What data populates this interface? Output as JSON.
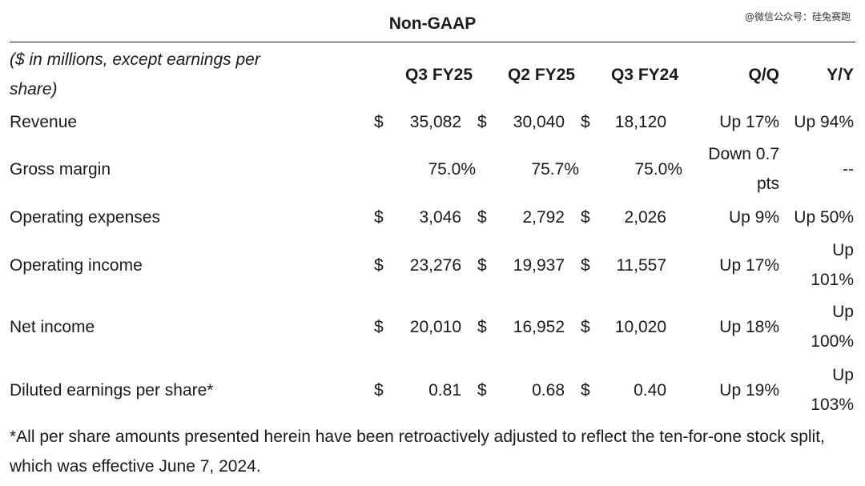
{
  "watermark": "@微信公众号：硅兔赛跑",
  "title": "Non-GAAP",
  "header": {
    "desc": "($ in millions, except earnings per share)",
    "q3fy25": "Q3 FY25",
    "q2fy25": "Q2 FY25",
    "q3fy24": "Q3 FY24",
    "qq": "Q/Q",
    "yy": "Y/Y"
  },
  "rows": [
    {
      "label": "Revenue",
      "d1": "$",
      "v1": "35,082",
      "d2": "$",
      "v2": "30,040",
      "d3": "$",
      "v3": "18,120",
      "qq": "Up 17%",
      "yy": "Up 94%"
    },
    {
      "label": "Gross margin",
      "d1": "",
      "v1": "75.0%",
      "d2": "",
      "v2": "75.7%",
      "d3": "",
      "v3": "75.0%",
      "qq": "Down 0.7 pts",
      "yy": "--"
    },
    {
      "label": "Operating expenses",
      "d1": "$",
      "v1": "3,046",
      "d2": "$",
      "v2": "2,792",
      "d3": "$",
      "v3": "2,026",
      "qq": "Up 9%",
      "yy": "Up 50%"
    },
    {
      "label": "Operating income",
      "d1": "$",
      "v1": "23,276",
      "d2": "$",
      "v2": "19,937",
      "d3": "$",
      "v3": "11,557",
      "qq": "Up 17%",
      "yy": "Up 101%"
    },
    {
      "label": "Net income",
      "d1": "$",
      "v1": "20,010",
      "d2": "$",
      "v2": "16,952",
      "d3": "$",
      "v3": "10,020",
      "qq": "Up 18%",
      "yy": "Up 100%"
    },
    {
      "label": "Diluted earnings per share*",
      "d1": "$",
      "v1": "0.81",
      "d2": "$",
      "v2": "0.68",
      "d3": "$",
      "v3": "0.40",
      "qq": "Up 19%",
      "yy": "Up 103%"
    }
  ],
  "footnote": "*All per share amounts presented herein have been retroactively adjusted to reflect the ten-for-one stock split, which was effective June 7, 2024."
}
